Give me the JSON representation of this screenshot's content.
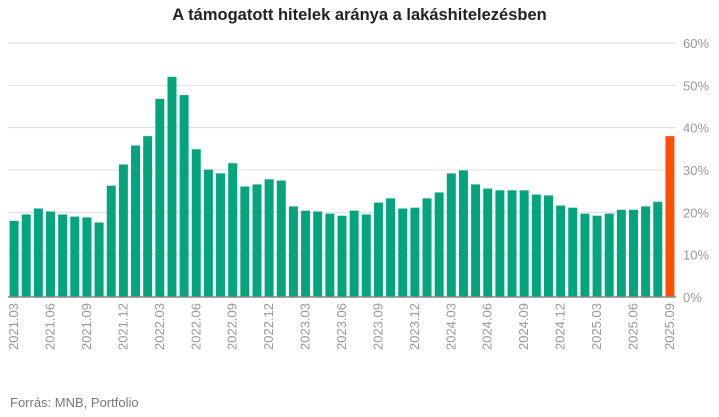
{
  "chart_data": {
    "type": "bar",
    "title": "A támogatott hitelek aránya a lakáshitelezésben",
    "xlabel": "",
    "ylabel": "",
    "ylim": [
      0,
      60
    ],
    "yticks": [
      "0%",
      "10%",
      "20%",
      "30%",
      "40%",
      "50%",
      "60%"
    ],
    "ytick_values": [
      0,
      10,
      20,
      30,
      40,
      50,
      60
    ],
    "grid": true,
    "categories": [
      "2021.03",
      "2021.04",
      "2021.05",
      "2021.06",
      "2021.07",
      "2021.08",
      "2021.09",
      "2021.10",
      "2021.11",
      "2021.12",
      "2022.01",
      "2022.02",
      "2022.03",
      "2022.04",
      "2022.05",
      "2022.06",
      "2022.07",
      "2022.08",
      "2022.09",
      "2022.10",
      "2022.11",
      "2022.12",
      "2023.01",
      "2023.02",
      "2023.03",
      "2023.04",
      "2023.05",
      "2023.06",
      "2023.07",
      "2023.08",
      "2023.09",
      "2023.10",
      "2023.11",
      "2023.12",
      "2024.01",
      "2024.02",
      "2024.03",
      "2024.04",
      "2024.05",
      "2024.06",
      "2024.07",
      "2024.08",
      "2024.09",
      "2024.10",
      "2024.11",
      "2024.12",
      "2025.01",
      "2025.02",
      "2025.03",
      "2025.04",
      "2025.05",
      "2025.06",
      "2025.07",
      "2025.08",
      "2025.09"
    ],
    "xtick_labels": [
      "2021.03",
      "2021.06",
      "2021.09",
      "2021.12",
      "2022.03",
      "2022.06",
      "2022.09",
      "2022.12",
      "2023.03",
      "2023.06",
      "2023.09",
      "2023.12",
      "2024.03",
      "2024.06",
      "2024.09",
      "2024.12",
      "2025.03",
      "2025.06",
      "2025.09"
    ],
    "values": [
      18.0,
      19.5,
      20.9,
      20.2,
      19.5,
      19.0,
      18.8,
      17.6,
      26.3,
      31.3,
      35.8,
      38.0,
      46.8,
      52.0,
      47.7,
      34.9,
      30.1,
      29.2,
      31.6,
      26.1,
      26.6,
      27.8,
      27.5,
      21.4,
      20.4,
      20.2,
      19.7,
      19.2,
      20.4,
      19.5,
      22.3,
      23.3,
      20.9,
      21.1,
      23.3,
      24.7,
      29.2,
      29.9,
      26.6,
      25.6,
      25.2,
      25.2,
      25.2,
      24.2,
      24.0,
      21.6,
      21.1,
      19.7,
      19.2,
      19.7,
      20.6,
      20.6,
      21.4,
      22.5,
      38.0
    ],
    "colors": {
      "bar": "#04a57e",
      "highlight": "#fc5000",
      "grid": "#dddddd",
      "axis": "#888888"
    },
    "highlight_index": 54
  },
  "source": "Forrás: MNB, Portfolio"
}
